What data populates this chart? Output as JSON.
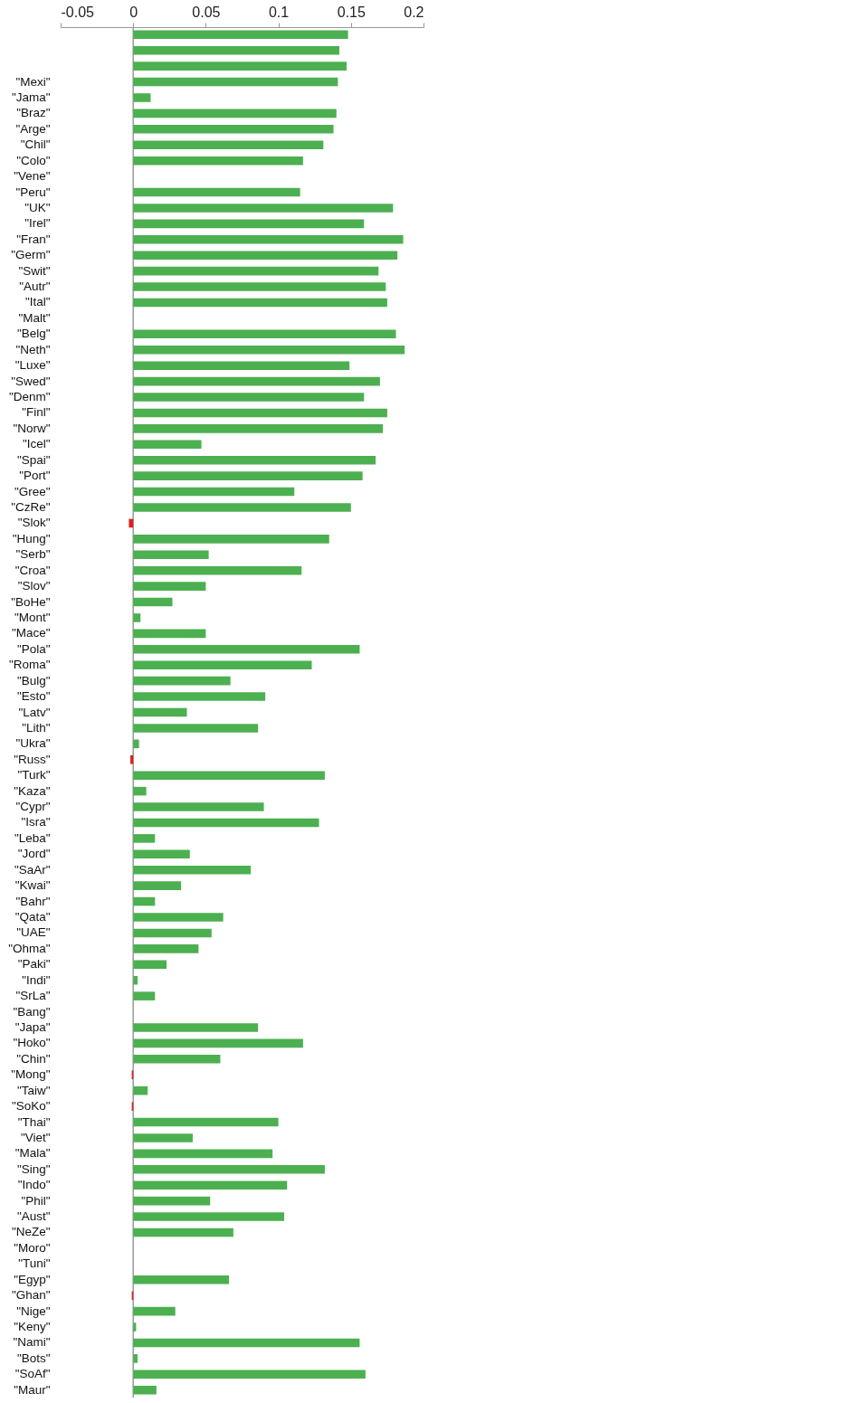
{
  "chart_data": {
    "type": "bar",
    "orientation": "horizontal",
    "categories": [
      null,
      null,
      null,
      "\"Mexi\"",
      "\"Jama\"",
      "\"Braz\"",
      "\"Arge\"",
      "\"Chil\"",
      "\"Colo\"",
      "\"Vene\"",
      "\"Peru\"",
      "\"UK\"",
      "\"Irel\"",
      "\"Fran\"",
      "\"Germ\"",
      "\"Swit\"",
      "\"Autr\"",
      "\"Ital\"",
      "\"Malt\"",
      "\"Belg\"",
      "\"Neth\"",
      "\"Luxe\"",
      "\"Swed\"",
      "\"Denm\"",
      "\"Finl\"",
      "\"Norw\"",
      "\"Icel\"",
      "\"Spai\"",
      "\"Port\"",
      "\"Gree\"",
      "\"CzRe\"",
      "\"Slok\"",
      "\"Hung\"",
      "\"Serb\"",
      "\"Croa\"",
      "\"Slov\"",
      "\"BoHe\"",
      "\"Mont\"",
      "\"Mace\"",
      "\"Pola\"",
      "\"Roma\"",
      "\"Bulg\"",
      "\"Esto\"",
      "\"Latv\"",
      "\"Lith\"",
      "\"Ukra\"",
      "\"Russ\"",
      "\"Turk\"",
      "\"Kaza\"",
      "\"Cypr\"",
      "\"Isra\"",
      "\"Leba\"",
      "\"Jord\"",
      "\"SaAr\"",
      "\"Kwai\"",
      "\"Bahr\"",
      "\"Qata\"",
      "\"UAE\"",
      "\"Ohma\"",
      "\"Paki\"",
      "\"Indi\"",
      "\"SrLa\"",
      "\"Bang\"",
      "\"Japa\"",
      "\"Hoko\"",
      "\"Chin\"",
      "\"Mong\"",
      "\"Taiw\"",
      "\"SoKo\"",
      "\"Thai\"",
      "\"Viet\"",
      "\"Mala\"",
      "\"Sing\"",
      "\"Indo\"",
      "\"Phil\"",
      "\"Aust\"",
      "\"NeZe\"",
      "\"Moro\"",
      "\"Tuni\"",
      "\"Egyp\"",
      "\"Ghan\"",
      "\"Nige\"",
      "\"Keny\"",
      "\"Nami\"",
      "\"Bots\"",
      "\"SoAf\"",
      "\"Maur\""
    ],
    "values": [
      0.148,
      0.142,
      0.147,
      0.141,
      0.012,
      0.14,
      0.138,
      0.131,
      0.117,
      null,
      0.115,
      0.179,
      0.159,
      0.186,
      0.182,
      0.169,
      0.174,
      0.175,
      null,
      0.181,
      0.187,
      0.149,
      0.17,
      0.159,
      0.175,
      0.172,
      0.047,
      0.167,
      0.158,
      0.111,
      0.15,
      -0.003,
      0.135,
      0.052,
      0.116,
      0.05,
      0.027,
      0.005,
      0.05,
      0.156,
      0.123,
      0.067,
      0.091,
      0.037,
      0.086,
      0.004,
      -0.002,
      0.132,
      0.009,
      0.09,
      0.128,
      0.015,
      0.039,
      0.081,
      0.033,
      0.015,
      0.062,
      0.054,
      0.045,
      0.023,
      0.003,
      0.015,
      null,
      0.086,
      0.117,
      0.06,
      -0.001,
      0.01,
      -0.001,
      0.1,
      0.041,
      0.096,
      0.132,
      0.106,
      0.053,
      0.104,
      0.069,
      null,
      null,
      0.066,
      -0.001,
      0.029,
      0.002,
      0.156,
      0.003,
      0.16,
      0.016
    ],
    "colors": [
      "#4cb050",
      "#4cb050",
      "#4cb050",
      "#4cb050",
      "#4cb050",
      "#4cb050",
      "#4cb050",
      "#4cb050",
      "#4cb050",
      "#4cb050",
      "#4cb050",
      "#4cb050",
      "#4cb050",
      "#4cb050",
      "#4cb050",
      "#4cb050",
      "#4cb050",
      "#4cb050",
      "#4cb050",
      "#4cb050",
      "#4cb050",
      "#4cb050",
      "#4cb050",
      "#4cb050",
      "#4cb050",
      "#4cb050",
      "#4cb050",
      "#4cb050",
      "#4cb050",
      "#4cb050",
      "#4cb050",
      "#e02020",
      "#4cb050",
      "#4cb050",
      "#4cb050",
      "#4cb050",
      "#4cb050",
      "#4cb050",
      "#4cb050",
      "#4cb050",
      "#4cb050",
      "#4cb050",
      "#4cb050",
      "#4cb050",
      "#4cb050",
      "#4cb050",
      "#e02020",
      "#4cb050",
      "#4cb050",
      "#4cb050",
      "#4cb050",
      "#4cb050",
      "#4cb050",
      "#4cb050",
      "#4cb050",
      "#4cb050",
      "#4cb050",
      "#4cb050",
      "#4cb050",
      "#4cb050",
      "#4cb050",
      "#4cb050",
      "#4cb050",
      "#4cb050",
      "#4cb050",
      "#4cb050",
      "#e02020",
      "#4cb050",
      "#e02020",
      "#4cb050",
      "#4cb050",
      "#4cb050",
      "#4cb050",
      "#4cb050",
      "#4cb050",
      "#4cb050",
      "#4cb050",
      "#4cb050",
      "#4cb050",
      "#4cb050",
      "#e02020",
      "#4cb050",
      "#4cb050",
      "#4cb050",
      "#4cb050",
      "#4cb050",
      "#4cb050"
    ],
    "xlim": [
      -0.05,
      0.2
    ],
    "xticks": [
      -0.05,
      0,
      0.05,
      0.1,
      0.15,
      0.2
    ],
    "ref_lines": [
      {
        "axis": "x",
        "value": 0,
        "color": "#999999"
      }
    ],
    "grid": false
  }
}
